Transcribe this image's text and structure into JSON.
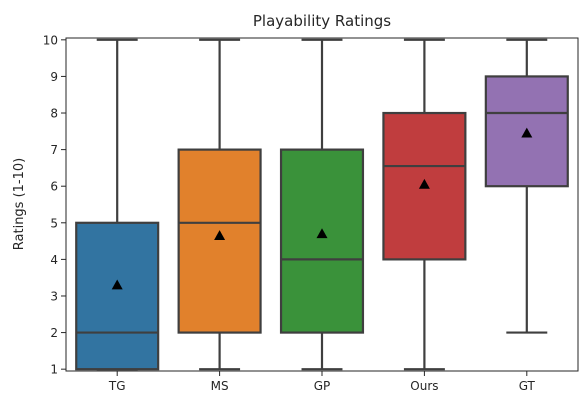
{
  "chart_data": {
    "type": "box",
    "title": "Playability Ratings",
    "xlabel": "",
    "ylabel": "Ratings (1-10)",
    "ylim": [
      0.95,
      10.05
    ],
    "yticks": [
      1,
      2,
      3,
      4,
      5,
      6,
      7,
      8,
      9,
      10
    ],
    "categories": [
      "TG",
      "MS",
      "GP",
      "Ours",
      "GT"
    ],
    "boxes": [
      {
        "category": "TG",
        "min": 1,
        "q1": 1,
        "median": 2,
        "q3": 5,
        "max": 10,
        "mean": 3.3,
        "color": "#3274a1"
      },
      {
        "category": "MS",
        "min": 1,
        "q1": 2,
        "median": 5,
        "q3": 7,
        "max": 10,
        "mean": 4.65,
        "color": "#e1812c"
      },
      {
        "category": "GP",
        "min": 1,
        "q1": 2,
        "median": 4,
        "q3": 7,
        "max": 10,
        "mean": 4.7,
        "color": "#3a923a"
      },
      {
        "category": "Ours",
        "min": 1,
        "q1": 4,
        "median": 6.55,
        "q3": 8,
        "max": 10,
        "mean": 6.05,
        "color": "#c03d3e"
      },
      {
        "category": "GT",
        "min": 2,
        "q1": 6,
        "median": 8,
        "q3": 9,
        "max": 10,
        "mean": 7.45,
        "color": "#9372b2"
      }
    ],
    "line_color": "#3f3f3f",
    "mean_marker": "triangle",
    "mean_color": "#000000",
    "grid": false
  }
}
